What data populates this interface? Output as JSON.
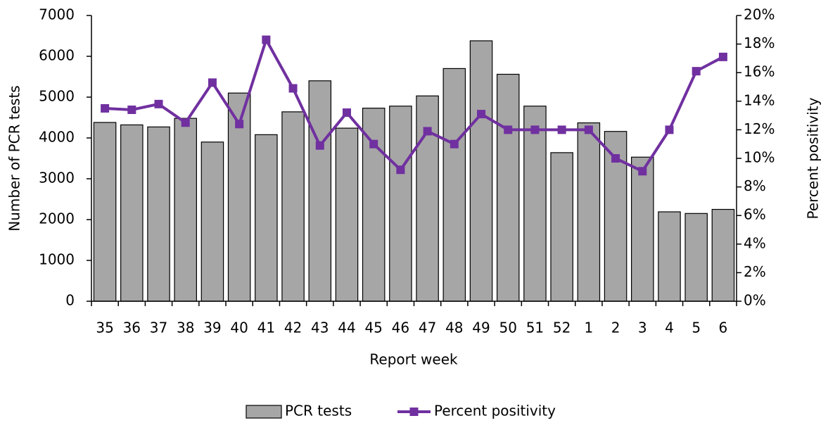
{
  "chart_data": {
    "type": "bar",
    "x_label": "Report week",
    "y_label": "Number of PCR tests",
    "y2_label": "Percent positivity",
    "categories": [
      "35",
      "36",
      "37",
      "38",
      "39",
      "40",
      "41",
      "42",
      "43",
      "44",
      "45",
      "46",
      "47",
      "48",
      "49",
      "50",
      "51",
      "52",
      "1",
      "2",
      "3",
      "4",
      "5",
      "6"
    ],
    "series": [
      {
        "name": "PCR tests",
        "type": "bar",
        "color": "#a6a6a6",
        "values": [
          4380,
          4320,
          4270,
          4480,
          3900,
          5100,
          4080,
          4640,
          5400,
          4240,
          4730,
          4780,
          5030,
          5700,
          6380,
          5560,
          4780,
          3640,
          4370,
          4160,
          3530,
          2190,
          2150,
          2250
        ]
      },
      {
        "name": "Percent positivity",
        "type": "line",
        "axis": "y2",
        "color": "#7030a0",
        "values": [
          13.5,
          13.4,
          13.8,
          12.5,
          15.3,
          12.4,
          18.3,
          14.9,
          10.9,
          13.2,
          11.0,
          9.2,
          11.9,
          11.0,
          13.1,
          12.0,
          12.0,
          12.0,
          12.0,
          10.0,
          9.1,
          12.0,
          16.1,
          17.1
        ]
      }
    ],
    "ylim": [
      0,
      7000
    ],
    "yticks": [
      0,
      1000,
      2000,
      3000,
      4000,
      5000,
      6000,
      7000
    ],
    "y2lim": [
      0,
      20
    ],
    "y2ticks": [
      {
        "value": 0,
        "label": "0%"
      },
      {
        "value": 2,
        "label": "2%"
      },
      {
        "value": 4,
        "label": "4%"
      },
      {
        "value": 6,
        "label": "6%"
      },
      {
        "value": 8,
        "label": "8%"
      },
      {
        "value": 10,
        "label": "10%"
      },
      {
        "value": 12,
        "label": "12%"
      },
      {
        "value": 14,
        "label": "14%"
      },
      {
        "value": 16,
        "label": "16%"
      },
      {
        "value": 18,
        "label": "18%"
      },
      {
        "value": 20,
        "label": "20%"
      }
    ],
    "grid": false,
    "legend": "bottom"
  }
}
